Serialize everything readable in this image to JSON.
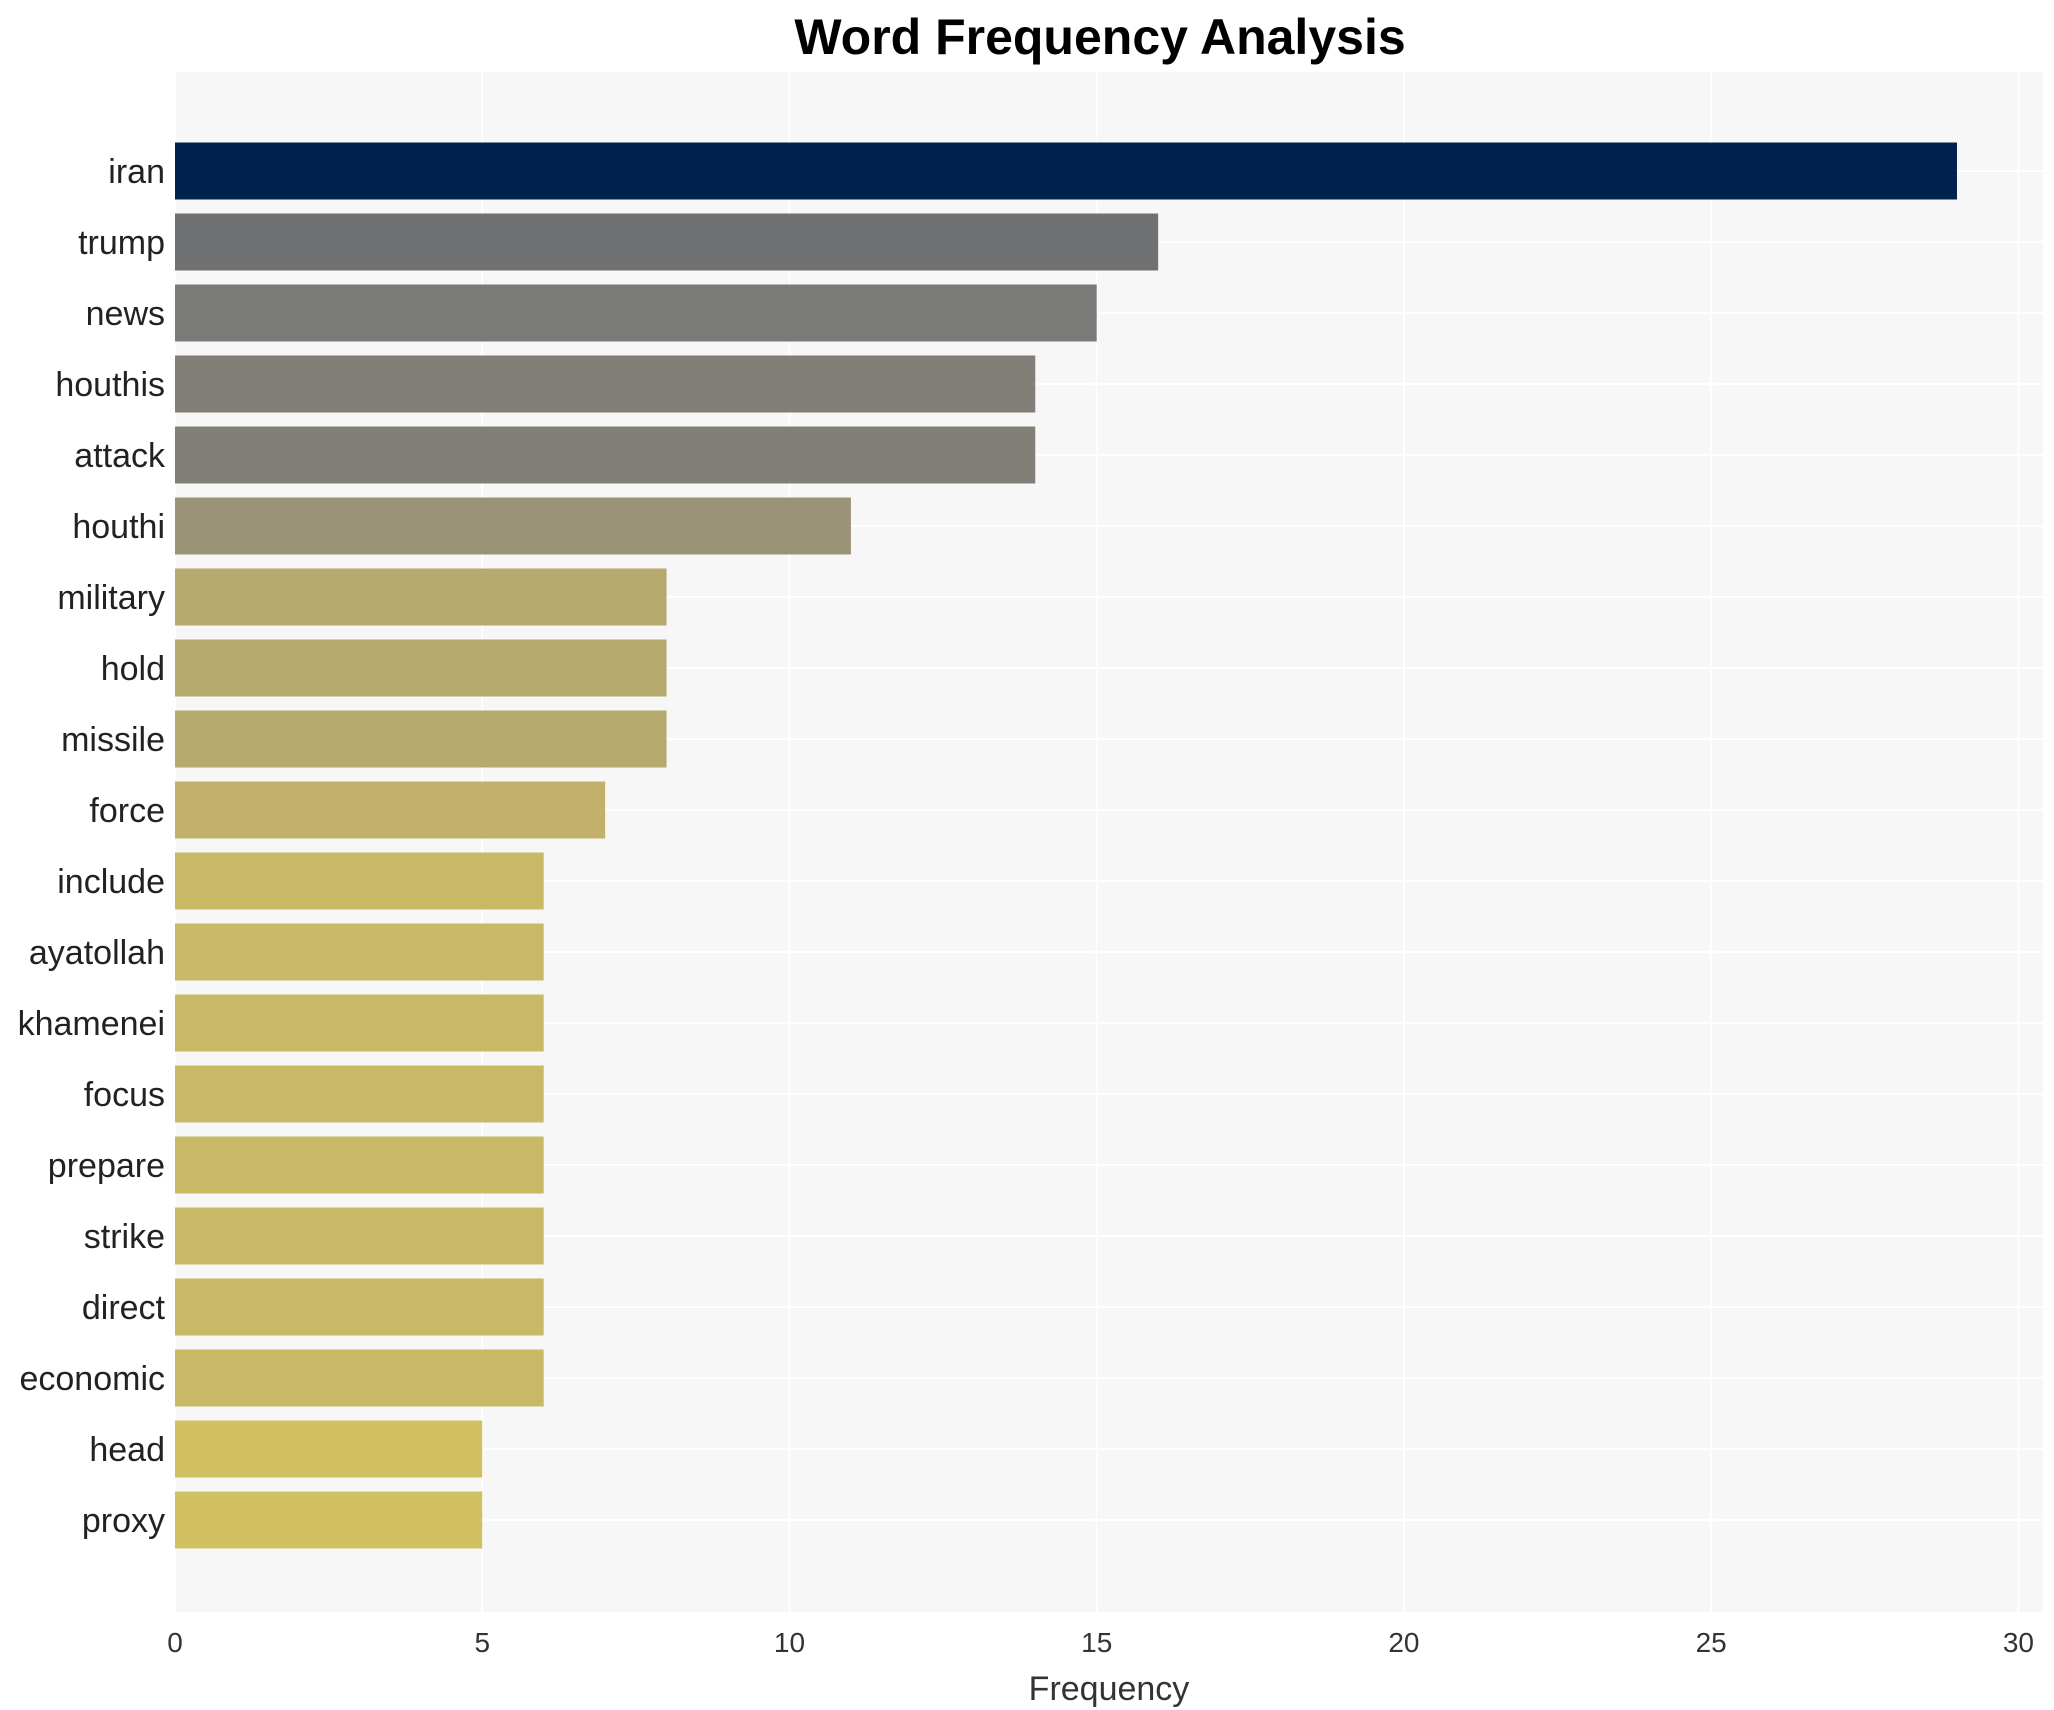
{
  "chart_data": {
    "type": "bar",
    "orientation": "horizontal",
    "title": "Word Frequency Analysis",
    "xlabel": "Frequency",
    "ylabel": "",
    "xlim": [
      0,
      30.4
    ],
    "xticks": [
      0,
      5,
      10,
      15,
      20,
      25,
      30
    ],
    "grid": true,
    "categories": [
      "iran",
      "trump",
      "news",
      "houthis",
      "attack",
      "houthi",
      "military",
      "hold",
      "missile",
      "force",
      "include",
      "ayatollah",
      "khamenei",
      "focus",
      "prepare",
      "strike",
      "direct",
      "economic",
      "head",
      "proxy"
    ],
    "values": [
      29,
      16,
      15,
      14,
      14,
      11,
      8,
      8,
      8,
      7,
      6,
      6,
      6,
      6,
      6,
      6,
      6,
      6,
      5,
      5
    ],
    "colors": [
      "#00224e",
      "#707173",
      "#7a7a79",
      "#817f77",
      "#817f77",
      "#9b9377",
      "#b6aa6f",
      "#b6aa6f",
      "#b6aa6f",
      "#c2b06b",
      "#c9b866",
      "#c9b866",
      "#c9b866",
      "#c9b866",
      "#c9b866",
      "#c9b866",
      "#c9b866",
      "#c9b866",
      "#d0c062",
      "#d0c062"
    ],
    "background": "#f7f7f7"
  }
}
